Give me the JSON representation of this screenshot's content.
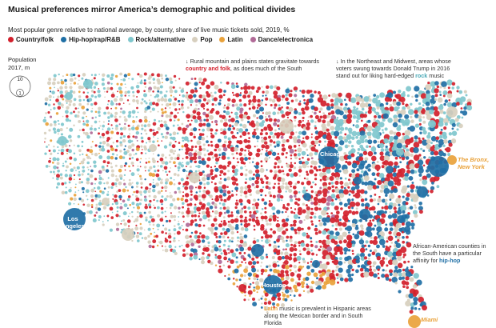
{
  "title": "Musical preferences mirror America’s demographic and political divides",
  "subtitle": "Most popular genre relative to national average, by county, share of live music tickets sold, 2019, %",
  "legend": [
    {
      "label": "Country/folk",
      "color": "#d21f2b"
    },
    {
      "label": "Hip-hop/rap/R&B",
      "color": "#1f6fa5"
    },
    {
      "label": "Rock/alternative",
      "color": "#7fc7cd"
    },
    {
      "label": "Pop",
      "color": "#d7cfbe"
    },
    {
      "label": "Latin",
      "color": "#e9a23b"
    },
    {
      "label": "Dance/electronica",
      "color": "#b06a97"
    }
  ],
  "size_legend": {
    "title": "Population",
    "unit": "2017, m",
    "big": "10",
    "small": "1"
  },
  "annotations": {
    "rural": {
      "pre": "↓ Rural mountain and plains states gravitate towards",
      "hl": "country and folk",
      "post": ", as does much of the South"
    },
    "northeast": {
      "pre": "↓ In the Northeast and Midwest, areas whose voters swung towards Donald Trump in 2016 stand out for liking hard-edged",
      "hl": "rock",
      "post": " music"
    },
    "south": {
      "pre": "African-American counties in the South have a particular affinity for",
      "hl": "hip-hop"
    },
    "latin": {
      "hl": "Latin",
      "post": " music is prevalent in Hispanic areas along the Mexican border and in South Florida"
    }
  },
  "cities": {
    "chicago": "Chicago",
    "la": "Los Angeles",
    "houston": "Houston",
    "bronx": "The Bronx, New York",
    "miami": "Miami"
  }
}
